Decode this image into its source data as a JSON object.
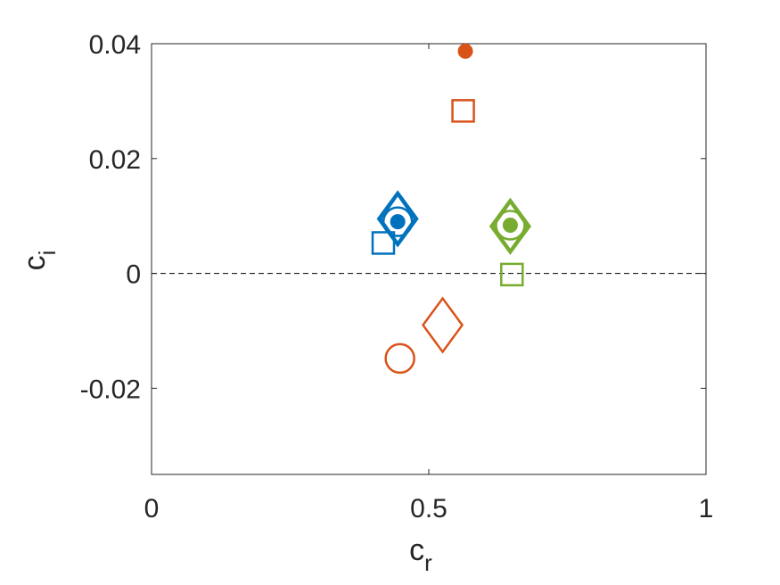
{
  "chart_data": {
    "type": "scatter",
    "title": "",
    "xlabel": "c",
    "xlabel_sub": "r",
    "ylabel": "c",
    "ylabel_sub": "i",
    "xlim": [
      0,
      1
    ],
    "ylim": [
      -0.035,
      0.04
    ],
    "xticks": [
      {
        "value": 0,
        "label": "0"
      },
      {
        "value": 0.5,
        "label": "0.5"
      },
      {
        "value": 1,
        "label": "1"
      }
    ],
    "yticks": [
      {
        "value": -0.02,
        "label": "-0.02"
      },
      {
        "value": 0,
        "label": "0"
      },
      {
        "value": 0.02,
        "label": "0.02"
      },
      {
        "value": 0.04,
        "label": "0.04"
      }
    ],
    "grid": false,
    "reference_line": {
      "y": 0,
      "style": "dashed"
    },
    "series": [
      {
        "color": "#0072BD",
        "points": [
          {
            "x": 0.444,
            "y": 0.0095,
            "marker": "diamond"
          },
          {
            "x": 0.444,
            "y": 0.0095,
            "marker": "diamond"
          },
          {
            "x": 0.444,
            "y": 0.009,
            "marker": "circle"
          },
          {
            "x": 0.444,
            "y": 0.009,
            "marker": "filled-circle"
          },
          {
            "x": 0.418,
            "y": 0.0053,
            "marker": "square"
          }
        ]
      },
      {
        "color": "#D95319",
        "points": [
          {
            "x": 0.566,
            "y": 0.0387,
            "marker": "filled-circle"
          },
          {
            "x": 0.562,
            "y": 0.0283,
            "marker": "square"
          },
          {
            "x": 0.525,
            "y": -0.009,
            "marker": "diamond"
          },
          {
            "x": 0.448,
            "y": -0.0148,
            "marker": "circle"
          }
        ]
      },
      {
        "color": "#77AC30",
        "points": [
          {
            "x": 0.647,
            "y": 0.0082,
            "marker": "diamond"
          },
          {
            "x": 0.647,
            "y": 0.0082,
            "marker": "diamond"
          },
          {
            "x": 0.647,
            "y": 0.0084,
            "marker": "circle"
          },
          {
            "x": 0.647,
            "y": 0.0084,
            "marker": "filled-circle"
          },
          {
            "x": 0.65,
            "y": -0.0002,
            "marker": "square"
          }
        ]
      }
    ]
  }
}
